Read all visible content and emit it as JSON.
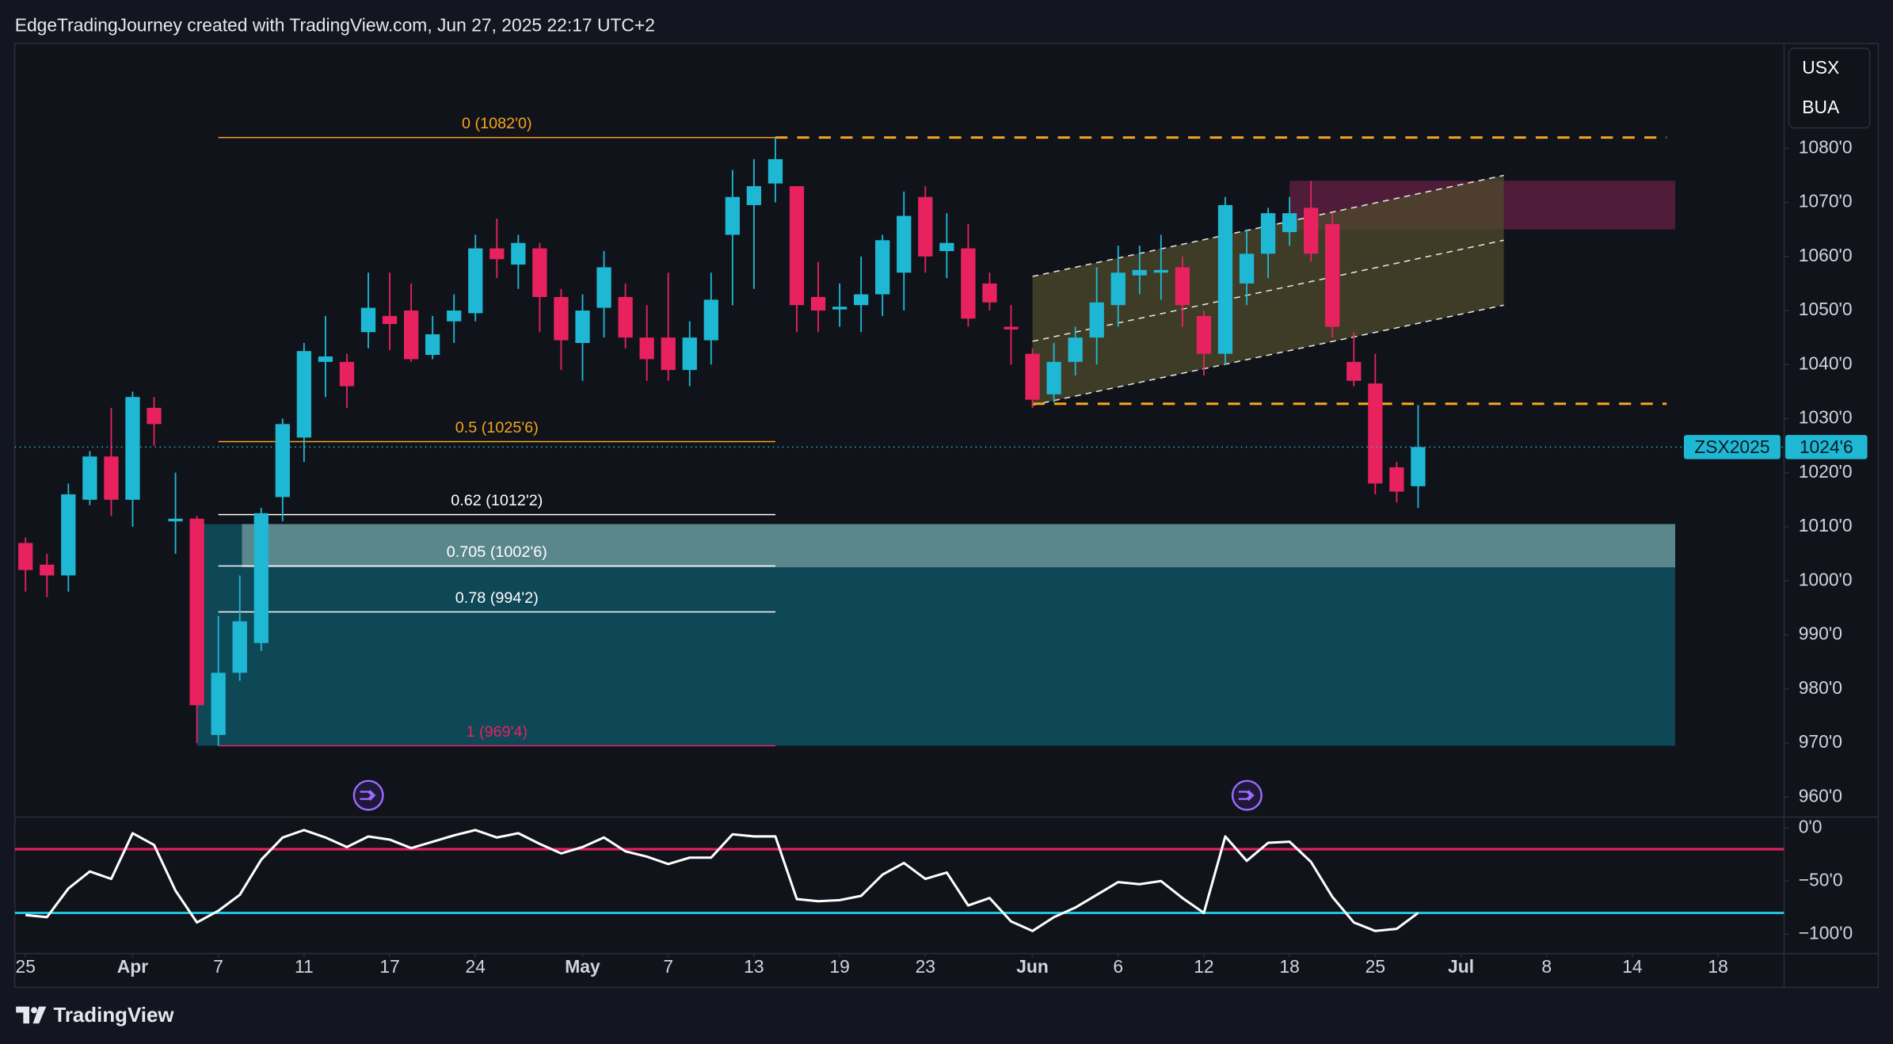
{
  "chart_data": {
    "type": "candlestick",
    "title": "EdgeTradingJourney created with TradingView.com, Jun 27, 2025 22:17 UTC+2",
    "symbol": "ZSX2025",
    "last": 1024.75,
    "last_label": "1024'6",
    "legend": [
      "USX",
      "BUA"
    ],
    "footer": "TradingView",
    "up_color": "#1fb8d4",
    "down_color": "#e8225f",
    "x": [
      0,
      1,
      2,
      3,
      4,
      5,
      6,
      7,
      8,
      9,
      10,
      11,
      12,
      13,
      14,
      15,
      16,
      17,
      18,
      19,
      20,
      21,
      22,
      23,
      24,
      25,
      26,
      27,
      28,
      29,
      30,
      31,
      32,
      33,
      34,
      35,
      36,
      37,
      38,
      39,
      40,
      41,
      42,
      43,
      44,
      45,
      46,
      47,
      48,
      49,
      50,
      51,
      52,
      53,
      54,
      55,
      56,
      57,
      58,
      59,
      60,
      61,
      62,
      63,
      64,
      65
    ],
    "open": [
      1007,
      1003,
      1001,
      1015,
      1023,
      1015,
      1032,
      1011,
      1011.5,
      971.5,
      983,
      988.5,
      1015.5,
      1026.5,
      1040.5,
      1040.5,
      1046,
      1049,
      1050,
      1041.8,
      1048,
      1049.5,
      1061.5,
      1058.5,
      1061.5,
      1052.5,
      1044,
      1050.5,
      1052.5,
      1045,
      1045,
      1039,
      1044.5,
      1064,
      1069.5,
      1073.5,
      1073,
      1052.5,
      1050.2,
      1051,
      1053,
      1057,
      1071,
      1061,
      1061.5,
      1055,
      1047,
      1042,
      1034.5,
      1040.5,
      1045,
      1051,
      1056.5,
      1057,
      1058,
      1049,
      1042,
      1055,
      1060.5,
      1064.5,
      1069,
      1066,
      1040.5,
      1036.5,
      1021,
      1017.5
    ],
    "high": [
      1008,
      1005,
      1018,
      1024,
      1032,
      1035,
      1034,
      1020,
      1012,
      993.5,
      1001,
      1013.5,
      1030,
      1044,
      1049,
      1042,
      1057,
      1057,
      1055,
      1049,
      1053,
      1064,
      1067,
      1064,
      1062.5,
      1054,
      1053,
      1061,
      1055,
      1051,
      1057,
      1048,
      1057,
      1076,
      1078,
      1082,
      1073,
      1059,
      1055,
      1060,
      1064,
      1072,
      1073,
      1068,
      1066,
      1057,
      1051,
      1043,
      1044,
      1047,
      1058,
      1062,
      1062,
      1064,
      1060,
      1050,
      1071,
      1065,
      1069,
      1071,
      1074,
      1068,
      1046,
      1042,
      1022,
      1032.5
    ],
    "low": [
      998,
      997,
      998,
      1014,
      1012,
      1010,
      1025,
      1005,
      970,
      969.5,
      981.5,
      987,
      1011,
      1022,
      1034,
      1032,
      1043,
      1042.7,
      1040.5,
      1041,
      1044,
      1048,
      1056,
      1054,
      1046,
      1039,
      1037,
      1045,
      1043,
      1037,
      1037,
      1036,
      1040,
      1051,
      1054,
      1070,
      1046,
      1046,
      1047,
      1046,
      1049,
      1050,
      1057,
      1056,
      1047,
      1050,
      1040,
      1032,
      1033,
      1038,
      1040,
      1047,
      1053,
      1052,
      1047,
      1038,
      1040,
      1051,
      1056,
      1062,
      1059,
      1045,
      1036,
      1016,
      1014.5,
      1013.5
    ],
    "close": [
      1002,
      1001,
      1016,
      1023,
      1015,
      1034,
      1029,
      1011.5,
      977,
      983,
      992.5,
      1012.5,
      1029,
      1042.5,
      1041.5,
      1036,
      1050.5,
      1047.5,
      1041,
      1045.6,
      1050,
      1061.5,
      1059.5,
      1062.5,
      1052.5,
      1044.5,
      1050,
      1058,
      1045,
      1041,
      1039,
      1045,
      1052,
      1071,
      1073,
      1078,
      1051,
      1050,
      1050.7,
      1053,
      1063,
      1067.5,
      1060,
      1062.5,
      1048.5,
      1051.5,
      1046.5,
      1033.5,
      1040.5,
      1045,
      1051.5,
      1057,
      1057.5,
      1057.5,
      1051,
      1042,
      1069.5,
      1060.5,
      1068,
      1068,
      1060.5,
      1047,
      1037,
      1018,
      1016.5,
      1024.75
    ],
    "xlim": [
      -0.5,
      82.08
    ],
    "ylim": [
      956.3,
      1099.4
    ],
    "yticks": [
      {
        "value": 960,
        "label": "960'0"
      },
      {
        "value": 970,
        "label": "970'0"
      },
      {
        "value": 980,
        "label": "980'0"
      },
      {
        "value": 990,
        "label": "990'0"
      },
      {
        "value": 1000,
        "label": "1000'0"
      },
      {
        "value": 1010,
        "label": "1010'0"
      },
      {
        "value": 1020,
        "label": "1020'0"
      },
      {
        "value": 1030,
        "label": "1030'0"
      },
      {
        "value": 1040,
        "label": "1040'0"
      },
      {
        "value": 1050,
        "label": "1050'0"
      },
      {
        "value": 1060,
        "label": "1060'0"
      },
      {
        "value": 1070,
        "label": "1070'0"
      },
      {
        "value": 1080,
        "label": "1080'0"
      }
    ],
    "xticks": [
      {
        "value": 0,
        "label": "25"
      },
      {
        "value": 5,
        "label": "Apr"
      },
      {
        "value": 9,
        "label": "7"
      },
      {
        "value": 13,
        "label": "11"
      },
      {
        "value": 17,
        "label": "17"
      },
      {
        "value": 21,
        "label": "24"
      },
      {
        "value": 26,
        "label": "May"
      },
      {
        "value": 30,
        "label": "7"
      },
      {
        "value": 34,
        "label": "13"
      },
      {
        "value": 38,
        "label": "19"
      },
      {
        "value": 42,
        "label": "23"
      },
      {
        "value": 47,
        "label": "Jun"
      },
      {
        "value": 51,
        "label": "6"
      },
      {
        "value": 55,
        "label": "12"
      },
      {
        "value": 59,
        "label": "18"
      },
      {
        "value": 63,
        "label": "25"
      },
      {
        "value": 67,
        "label": "Jul"
      },
      {
        "value": 71,
        "label": "8"
      },
      {
        "value": 75,
        "label": "14"
      },
      {
        "value": 79,
        "label": "18"
      }
    ],
    "zones": [
      {
        "x": [
          8,
          77
        ],
        "y": [
          969.5,
          1010.5
        ],
        "color": "#0e4756"
      },
      {
        "x": [
          10.1,
          77
        ],
        "y": [
          1002.5,
          1010.5
        ],
        "color": "#5a878c"
      },
      {
        "x": [
          59,
          77
        ],
        "y": [
          1065,
          1074
        ],
        "color": "#5a1f3f"
      }
    ],
    "fib": [
      {
        "label": "0 (1082'0)",
        "value": 1082,
        "x": [
          9,
          35
        ],
        "color": "#f7a51d"
      },
      {
        "label": "0.5 (1025'6)",
        "value": 1025.75,
        "x": [
          9,
          35
        ],
        "color": "#f7a51d"
      },
      {
        "label": "0.62 (1012'2)",
        "value": 1012.25,
        "x": [
          9,
          35
        ],
        "color": "#ffffff"
      },
      {
        "label": "0.705 (1002'6)",
        "value": 1002.75,
        "x": [
          9,
          35
        ],
        "color": "#ffffff"
      },
      {
        "label": "0.78 (994'2)",
        "value": 994.25,
        "x": [
          9,
          35
        ],
        "color": "#ffffff"
      },
      {
        "label": "1 (969'4)",
        "value": 969.5,
        "x": [
          9,
          35
        ],
        "color": "#e8225f"
      }
    ],
    "levels": [
      {
        "value": 1082,
        "x": [
          35,
          76.6
        ],
        "color": "#f7a51d"
      },
      {
        "value": 1032.75,
        "x": [
          47,
          76.6
        ],
        "color": "#f7a51d"
      }
    ],
    "channel": {
      "x": [
        47,
        69
      ],
      "upper": [
        1056.3,
        1075
      ],
      "middle": [
        1044.3,
        1063
      ],
      "lower": [
        1032.5,
        1051
      ],
      "color": "#4d4a2c"
    },
    "oscillator": {
      "type": "line",
      "color": "#ffffff",
      "values": [
        -82,
        -84,
        -57,
        -41,
        -48,
        -5,
        -16,
        -59,
        -89,
        -78,
        -63,
        -30,
        -9,
        -2,
        -9,
        -18,
        -8,
        -11,
        -19,
        -13,
        -7,
        -2,
        -9,
        -5,
        -15,
        -24,
        -18,
        -9,
        -22,
        -27,
        -34,
        -28,
        -28,
        -6,
        -8,
        -8,
        -67,
        -69,
        -68,
        -64,
        -44,
        -33,
        -48,
        -42,
        -73,
        -66,
        -88,
        -97,
        -84,
        -75,
        -63,
        -51,
        -53,
        -50,
        -66,
        -80,
        -8,
        -31,
        -14,
        -13,
        -32,
        -65,
        -89,
        -97,
        -95,
        -80
      ],
      "ylim": [
        -118.2,
        10.2
      ],
      "yticks": [
        {
          "value": 0,
          "label": "0'0"
        },
        {
          "value": -50,
          "label": "−50'0"
        },
        {
          "value": -100,
          "label": "−100'0"
        }
      ],
      "levels": [
        {
          "value": -20,
          "color": "#e8225f"
        },
        {
          "value": -80,
          "color": "#1fc3e0"
        }
      ]
    }
  }
}
